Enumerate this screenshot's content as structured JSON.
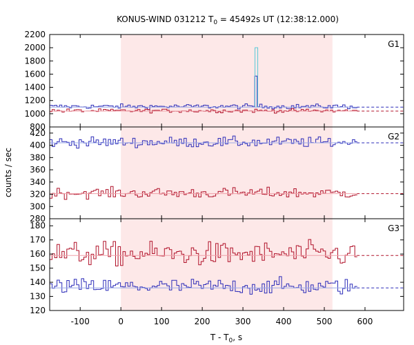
{
  "chart_data": {
    "type": "line",
    "title_main": "KONUS-WIND 031212 T",
    "title_sub": "0",
    "title_rest": " = 45492s UT (12:38:12.000)",
    "xlabel_main": "T - T",
    "xlabel_sub": "0",
    "xlabel_rest": ", s",
    "ylabel": "counts / sec",
    "xlim": [
      -175,
      695
    ],
    "xticks": [
      -100,
      0,
      100,
      200,
      300,
      400,
      500,
      600
    ],
    "shaded_interval": [
      0,
      520
    ],
    "colors": {
      "high_series": "#2a2ab8",
      "low_series": "#b01028",
      "spike": "#58c8d8",
      "shade": "#fde8e8",
      "fit_blue": "#9aa8e8",
      "fit_red": "#f0a0a8"
    },
    "panels": [
      {
        "label": "G1",
        "ylim": [
          800,
          2200
        ],
        "yticks": [
          800,
          1000,
          1200,
          1400,
          1600,
          1800,
          2000,
          2200
        ],
        "series": [
          {
            "color": "high_series",
            "mean": 1110,
            "noise": 25,
            "background_level": 1100
          },
          {
            "color": "low_series",
            "mean": 1045,
            "noise": 20,
            "background_level": 1040
          }
        ],
        "spike": {
          "x": 333,
          "peak_cyan": 2000,
          "peak_blue": 1570
        }
      },
      {
        "label": "G2",
        "ylim": [
          280,
          430
        ],
        "yticks": [
          280,
          300,
          320,
          340,
          360,
          380,
          400,
          420
        ],
        "series": [
          {
            "color": "high_series",
            "mean": 405,
            "noise": 6,
            "background_level": 404
          },
          {
            "color": "low_series",
            "mean": 322,
            "noise": 6,
            "background_level": 321
          }
        ]
      },
      {
        "label": "G3",
        "ylim": [
          120,
          185
        ],
        "yticks": [
          120,
          130,
          140,
          150,
          160,
          170,
          180
        ],
        "series": [
          {
            "color": "low_series",
            "mean": 160,
            "noise": 6,
            "background_level": 159
          },
          {
            "color": "high_series",
            "mean": 137,
            "noise": 4,
            "background_level": 136
          }
        ]
      }
    ],
    "data_x_range": [
      -175,
      580
    ],
    "bin_width": 6
  }
}
